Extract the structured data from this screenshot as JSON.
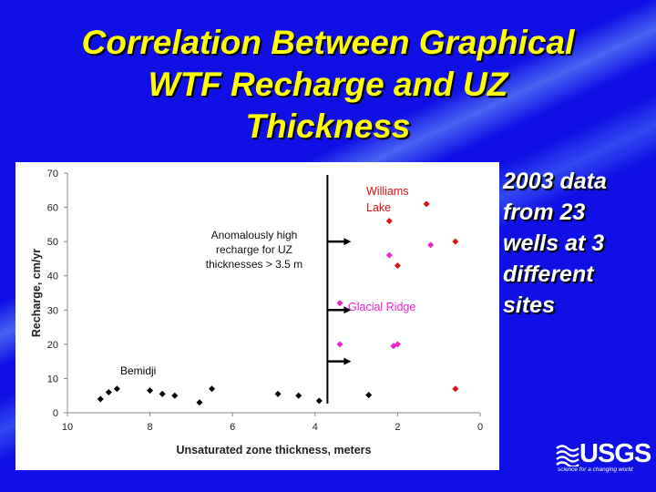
{
  "title_lines": [
    "Correlation Between Graphical",
    "WTF Recharge and UZ",
    "Thickness"
  ],
  "side_note_lines": [
    "2003 data",
    "from 23",
    "wells at 3",
    "different",
    "sites"
  ],
  "logo": {
    "brand": "USGS",
    "tagline": "science for a changing world",
    "icon": "usgs-wave-icon"
  },
  "colors": {
    "background": "#1010e6",
    "title": "#ffff00",
    "black_series": "#000000",
    "red_series": "#dd1111",
    "magenta_series": "#ee22cc"
  },
  "chart_data": {
    "type": "scatter",
    "xlabel": "Unsaturated zone thickness, meters",
    "ylabel": "Recharge, cm/yr",
    "xlim": [
      10,
      0
    ],
    "ylim": [
      0,
      70
    ],
    "x_reversed": true,
    "xticks": [
      10,
      8,
      6,
      4,
      2,
      0
    ],
    "yticks": [
      0,
      10,
      20,
      30,
      40,
      50,
      60,
      70
    ],
    "grid": false,
    "divider_x": 3.7,
    "series": [
      {
        "name": "Bemidji",
        "color": "#000000",
        "points": [
          [
            9.2,
            4
          ],
          [
            9.0,
            6
          ],
          [
            8.8,
            7
          ],
          [
            8.0,
            6.5
          ],
          [
            7.7,
            5.5
          ],
          [
            7.4,
            5
          ],
          [
            6.8,
            3
          ],
          [
            6.5,
            7
          ],
          [
            4.9,
            5.5
          ],
          [
            4.4,
            5
          ],
          [
            3.9,
            3.5
          ],
          [
            2.7,
            5.2
          ]
        ]
      },
      {
        "name": "Williams Lake",
        "color": "#dd1111",
        "points": [
          [
            2.2,
            56
          ],
          [
            2.0,
            43
          ],
          [
            1.3,
            61
          ],
          [
            0.6,
            50
          ],
          [
            0.6,
            7
          ]
        ]
      },
      {
        "name": "Glacial Ridge",
        "color": "#ee22cc",
        "points": [
          [
            2.2,
            46
          ],
          [
            1.2,
            49
          ],
          [
            3.4,
            32
          ],
          [
            2.1,
            19.5
          ],
          [
            2.0,
            20
          ],
          [
            3.4,
            20
          ]
        ]
      }
    ],
    "annotations": {
      "anomaly_text": [
        "Anomalously high",
        "recharge for UZ",
        "thicknesses > 3.5 m"
      ],
      "arrows_at_y": [
        50,
        30,
        15
      ]
    }
  }
}
